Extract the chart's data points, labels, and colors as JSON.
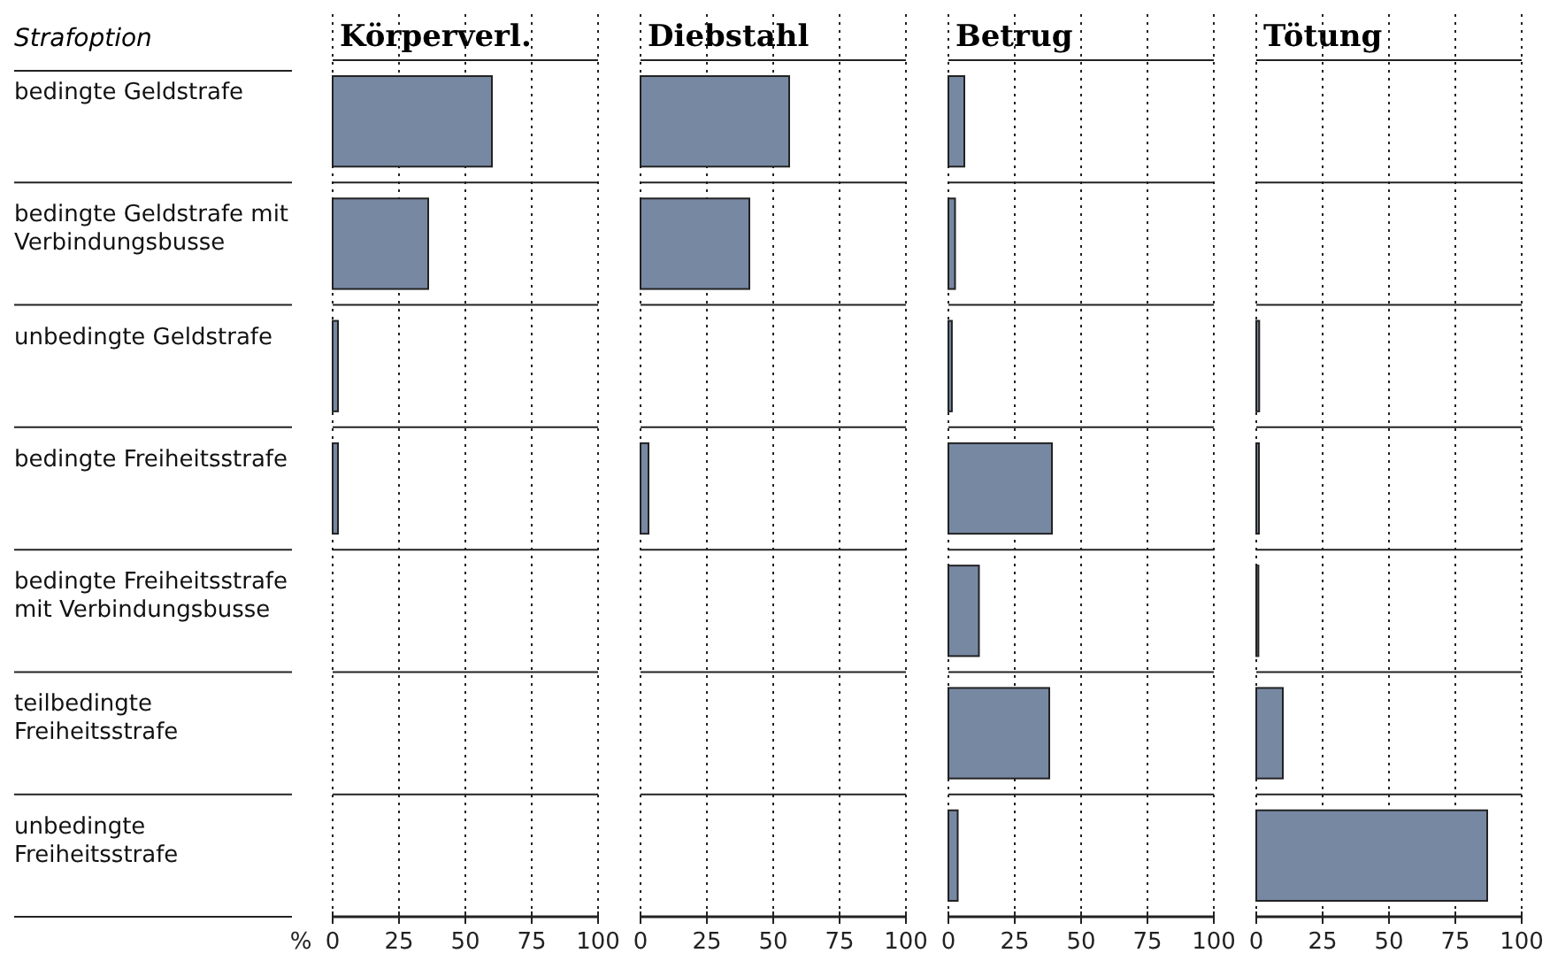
{
  "chart_data": [
    {
      "type": "bar",
      "orientation": "horizontal",
      "title": "Körperverl.",
      "ylabel": "Strafoption",
      "xlabel": "%",
      "categories": [
        "bedingte Geldstrafe",
        "bedingte Geldstrafe mit Verbindungsbusse",
        "unbedingte Geldstrafe",
        "bedingte Freiheitsstrafe",
        "bedingte Freiheitsstrafe mit Verbindungsbusse",
        "teilbedingte Freiheitsstrafe",
        "unbedingte Freiheitsstrafe"
      ],
      "series": [
        {
          "color": "#7788a3",
          "values": [
            60,
            36,
            2,
            2,
            null,
            null,
            null
          ]
        }
      ],
      "xlim": [
        0,
        100
      ],
      "xticks": [
        0,
        25,
        50,
        75,
        100
      ],
      "grid": "x"
    },
    {
      "type": "bar",
      "orientation": "horizontal",
      "title": "Diebstahl",
      "series": [
        {
          "color": "#7788a3",
          "values": [
            56,
            41,
            null,
            3,
            null,
            null,
            null
          ]
        }
      ],
      "xlim": [
        0,
        100
      ],
      "xticks": [
        0,
        25,
        50,
        75,
        100
      ],
      "grid": "x",
      "tick_labels": "x"
    },
    {
      "type": "bar",
      "orientation": "horizontal",
      "title": "Betrug",
      "series": [
        {
          "color": "#7788a3",
          "values": [
            6,
            2.5,
            1.3,
            39,
            11.5,
            38,
            3.5
          ]
        }
      ],
      "xlim": [
        0,
        100
      ],
      "xticks": [
        0,
        25,
        50,
        75,
        100
      ],
      "grid": "x",
      "tick_labels": "x"
    },
    {
      "type": "bar",
      "orientation": "horizontal",
      "title": "Tötung",
      "series": [
        {
          "color": "#7788a3",
          "values": [
            null,
            null,
            1.1,
            1,
            0.8,
            10,
            87
          ]
        }
      ],
      "xlim": [
        0,
        100
      ],
      "xticks": [
        0,
        25,
        50,
        75,
        100
      ],
      "grid": "x",
      "tick_labels": "x"
    }
  ]
}
